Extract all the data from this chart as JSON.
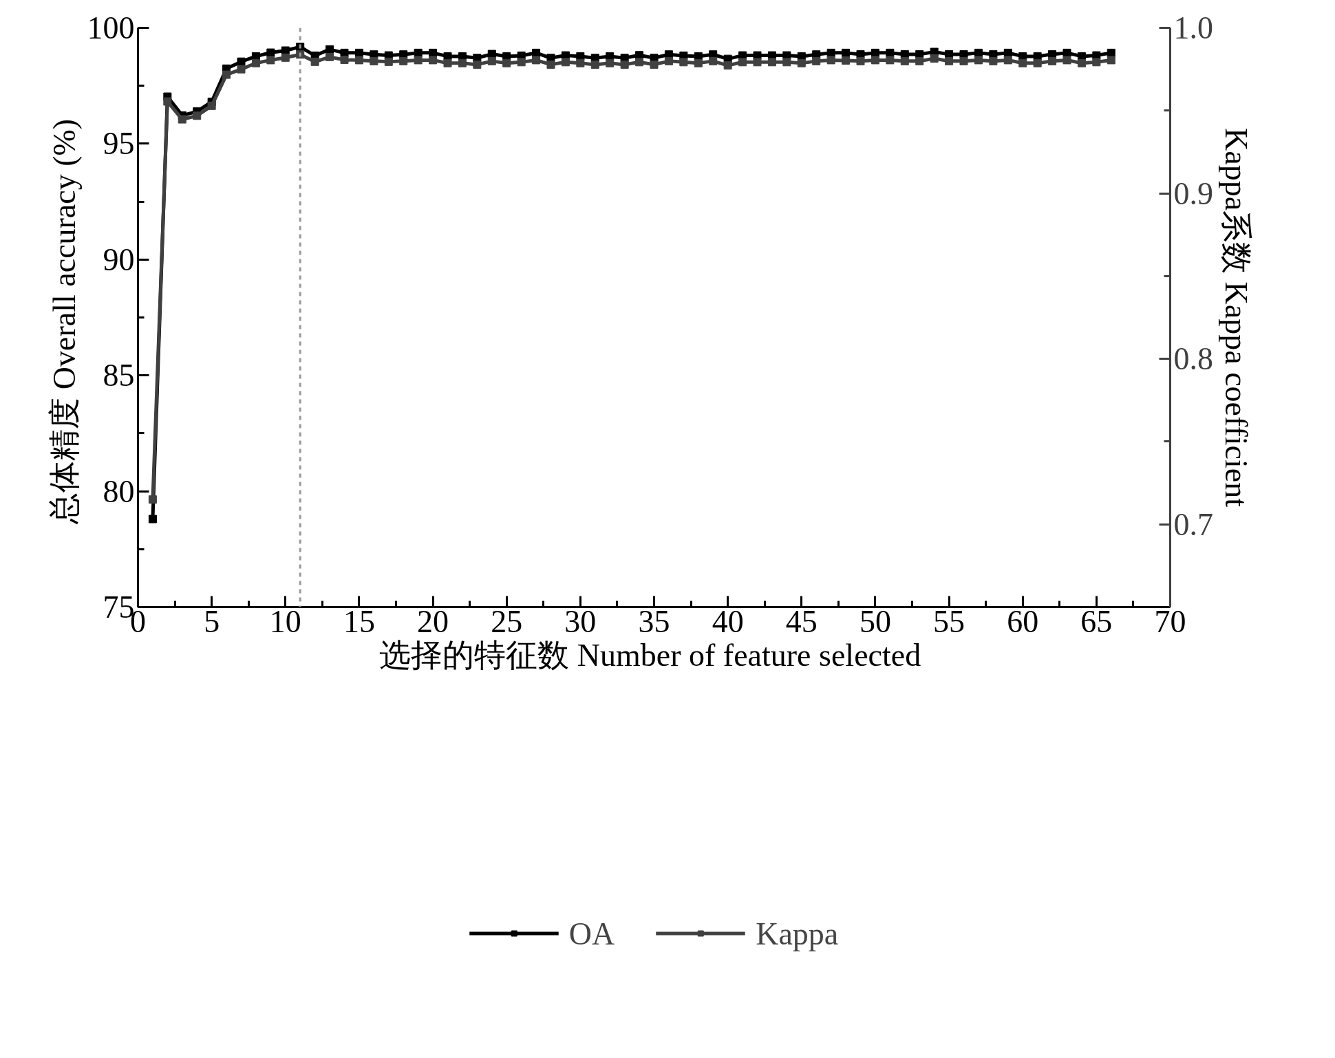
{
  "chart_data": {
    "type": "line",
    "xlabel": "选择的特征数  Number of feature selected",
    "ylabel": "总体精度  Overall accuracy (%)",
    "y2label": "Kappa系数 Kappa coefficient",
    "x": [
      1,
      2,
      3,
      4,
      5,
      6,
      7,
      8,
      9,
      10,
      11,
      12,
      13,
      14,
      15,
      16,
      17,
      18,
      19,
      20,
      21,
      22,
      23,
      24,
      25,
      26,
      27,
      28,
      29,
      30,
      31,
      32,
      33,
      34,
      35,
      36,
      37,
      38,
      39,
      40,
      41,
      42,
      43,
      44,
      45,
      46,
      47,
      48,
      49,
      50,
      51,
      52,
      53,
      54,
      55,
      56,
      57,
      58,
      59,
      60,
      61,
      62,
      63,
      64,
      65,
      66
    ],
    "series": [
      {
        "name": "OA",
        "color": "#000000",
        "values": [
          78.8,
          97.03,
          96.22,
          96.39,
          96.81,
          98.24,
          98.54,
          98.77,
          98.93,
          99.02,
          99.18,
          98.8,
          99.07,
          98.92,
          98.92,
          98.85,
          98.81,
          98.85,
          98.92,
          98.92,
          98.77,
          98.77,
          98.7,
          98.87,
          98.77,
          98.8,
          98.92,
          98.7,
          98.81,
          98.77,
          98.7,
          98.77,
          98.7,
          98.82,
          98.7,
          98.85,
          98.8,
          98.77,
          98.85,
          98.66,
          98.81,
          98.81,
          98.81,
          98.81,
          98.77,
          98.85,
          98.92,
          98.92,
          98.86,
          98.92,
          98.92,
          98.86,
          98.86,
          98.96,
          98.86,
          98.86,
          98.92,
          98.86,
          98.92,
          98.77,
          98.77,
          98.86,
          98.92,
          98.77,
          98.81,
          98.92
        ]
      },
      {
        "name": "Kappa",
        "color": "#404040",
        "axis": "y2",
        "values": [
          0.715,
          0.9555,
          0.9447,
          0.9469,
          0.9529,
          0.9717,
          0.975,
          0.9787,
          0.9805,
          0.982,
          0.9839,
          0.9795,
          0.9824,
          0.9807,
          0.9805,
          0.9799,
          0.9795,
          0.9799,
          0.9805,
          0.9805,
          0.9787,
          0.9787,
          0.9778,
          0.9799,
          0.9787,
          0.9793,
          0.9805,
          0.9778,
          0.9793,
          0.9787,
          0.9778,
          0.9787,
          0.9778,
          0.9793,
          0.9778,
          0.9799,
          0.9793,
          0.9787,
          0.9799,
          0.9773,
          0.9793,
          0.9793,
          0.9793,
          0.9793,
          0.9787,
          0.9799,
          0.9805,
          0.9803,
          0.9799,
          0.9805,
          0.9805,
          0.9799,
          0.9799,
          0.9815,
          0.9799,
          0.9799,
          0.9805,
          0.9799,
          0.9805,
          0.9787,
          0.9787,
          0.9799,
          0.9805,
          0.9787,
          0.9793,
          0.9805
        ]
      }
    ],
    "xlim": [
      0,
      70
    ],
    "xticks": [
      0,
      5,
      10,
      15,
      20,
      25,
      30,
      35,
      40,
      45,
      50,
      55,
      60,
      65,
      70
    ],
    "ylim": [
      75,
      100
    ],
    "yticks": [
      75,
      80,
      85,
      90,
      95,
      100
    ],
    "y2lim": [
      0.65,
      1.0
    ],
    "y2ticks": [
      {
        "value": 0.7,
        "label": "0.7"
      },
      {
        "value": 0.8,
        "label": "0.8"
      },
      {
        "value": 0.9,
        "label": "0.9"
      },
      {
        "value": 1.0,
        "label": "1.0"
      }
    ],
    "ref_lines": [
      {
        "axis": "x",
        "value": 11,
        "color": "#999999",
        "line_style": "dashed"
      }
    ],
    "grid": false,
    "legend": "bottom",
    "marker": "square",
    "line_style": "solid"
  }
}
